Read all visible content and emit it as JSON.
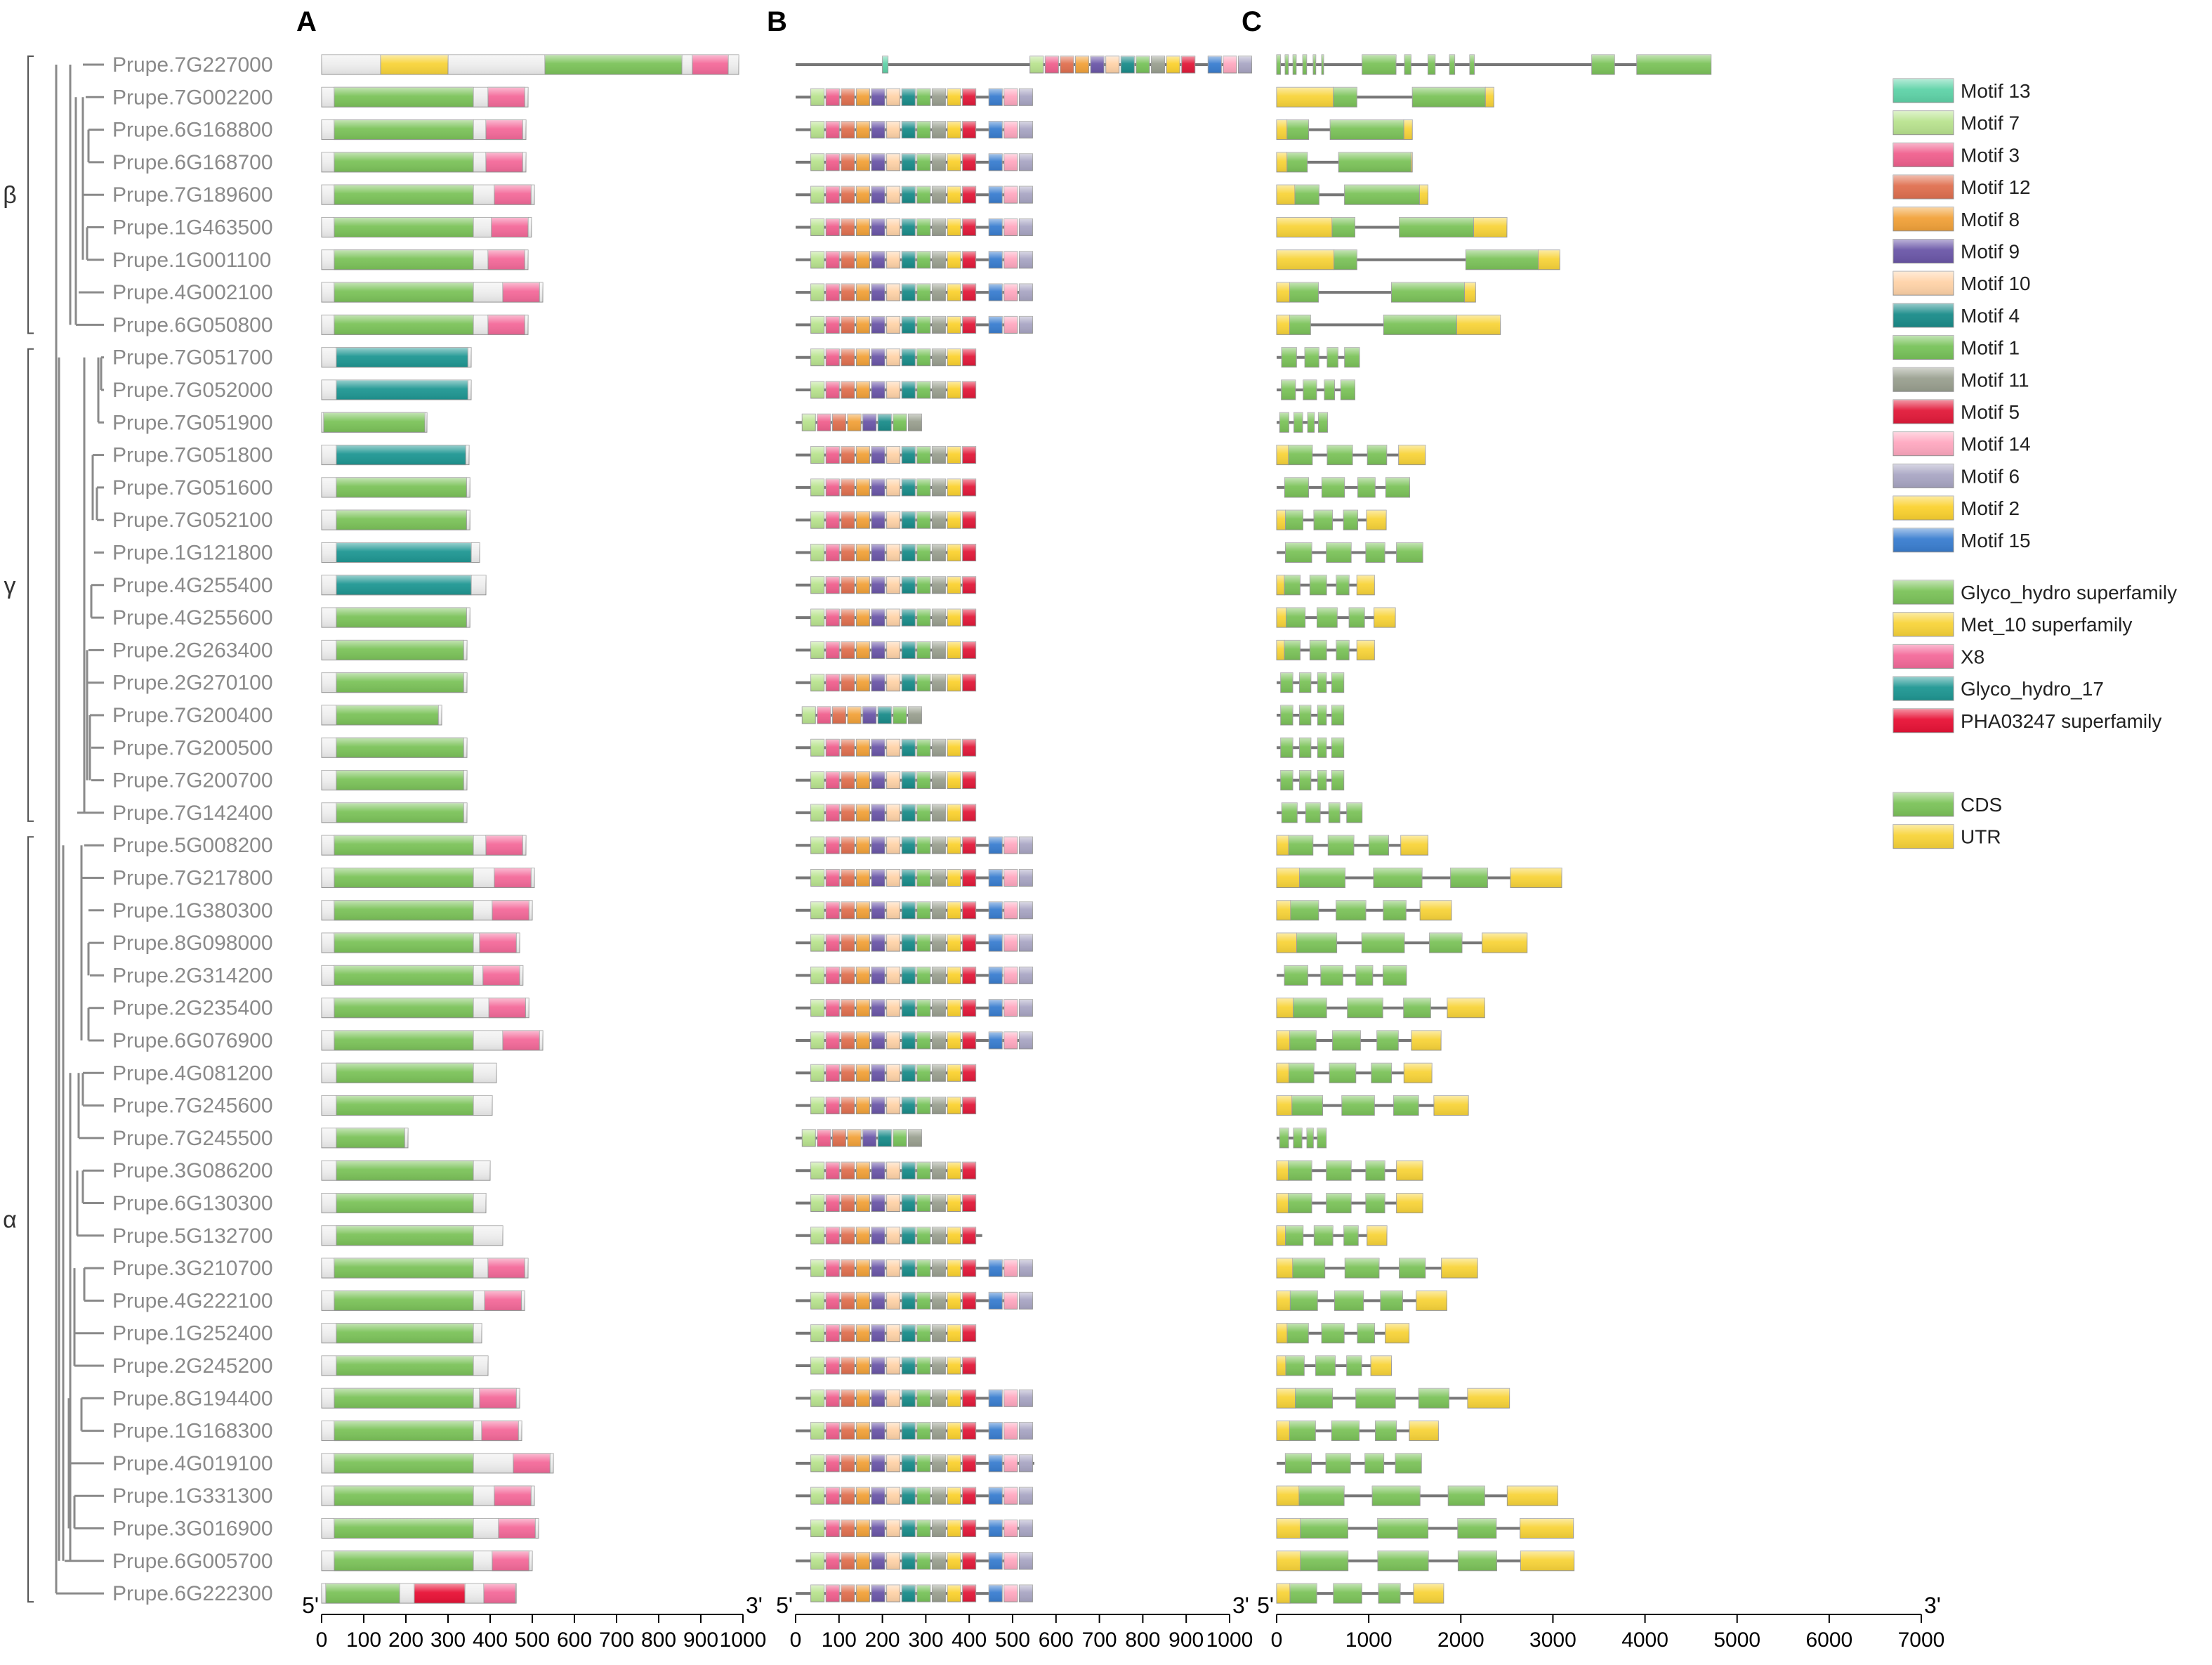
{
  "panels": [
    "A",
    "B",
    "C"
  ],
  "clades": [
    {
      "name": "β",
      "from": "Prupe.7G227000",
      "to": "Prupe.6G050800"
    },
    {
      "name": "γ",
      "from": "Prupe.7G051700",
      "to": "Prupe.7G142400"
    },
    {
      "name": "α",
      "from": "Prupe.5G008200",
      "to": "Prupe.6G222300"
    }
  ],
  "genes": [
    {
      "id": "Prupe.7G227000",
      "len": 990
    },
    {
      "id": "Prupe.7G002200",
      "len": 490
    },
    {
      "id": "Prupe.6G168800",
      "len": 485
    },
    {
      "id": "Prupe.6G168700",
      "len": 485
    },
    {
      "id": "Prupe.7G189600",
      "len": 505
    },
    {
      "id": "Prupe.1G463500",
      "len": 498
    },
    {
      "id": "Prupe.1G001100",
      "len": 490
    },
    {
      "id": "Prupe.4G002100",
      "len": 525
    },
    {
      "id": "Prupe.6G050800",
      "len": 490
    },
    {
      "id": "Prupe.7G051700",
      "len": 355
    },
    {
      "id": "Prupe.7G052000",
      "len": 355
    },
    {
      "id": "Prupe.7G051900",
      "len": 250
    },
    {
      "id": "Prupe.7G051800",
      "len": 350
    },
    {
      "id": "Prupe.7G051600",
      "len": 352
    },
    {
      "id": "Prupe.7G052100",
      "len": 352
    },
    {
      "id": "Prupe.1G121800",
      "len": 375
    },
    {
      "id": "Prupe.4G255400",
      "len": 390
    },
    {
      "id": "Prupe.4G255600",
      "len": 352
    },
    {
      "id": "Prupe.2G263400",
      "len": 345
    },
    {
      "id": "Prupe.2G270100",
      "len": 345
    },
    {
      "id": "Prupe.7G200400",
      "len": 285
    },
    {
      "id": "Prupe.7G200500",
      "len": 345
    },
    {
      "id": "Prupe.7G200700",
      "len": 345
    },
    {
      "id": "Prupe.7G142400",
      "len": 345
    },
    {
      "id": "Prupe.5G008200",
      "len": 485
    },
    {
      "id": "Prupe.7G217800",
      "len": 505
    },
    {
      "id": "Prupe.1G380300",
      "len": 500
    },
    {
      "id": "Prupe.8G098000",
      "len": 470
    },
    {
      "id": "Prupe.2G314200",
      "len": 478
    },
    {
      "id": "Prupe.2G235400",
      "len": 492
    },
    {
      "id": "Prupe.6G076900",
      "len": 525
    },
    {
      "id": "Prupe.4G081200",
      "len": 415
    },
    {
      "id": "Prupe.7G245600",
      "len": 405
    },
    {
      "id": "Prupe.7G245500",
      "len": 205
    },
    {
      "id": "Prupe.3G086200",
      "len": 400
    },
    {
      "id": "Prupe.6G130300",
      "len": 390
    },
    {
      "id": "Prupe.5G132700",
      "len": 430
    },
    {
      "id": "Prupe.3G210700",
      "len": 490
    },
    {
      "id": "Prupe.4G222100",
      "len": 482
    },
    {
      "id": "Prupe.1G252400",
      "len": 380
    },
    {
      "id": "Prupe.2G245200",
      "len": 395
    },
    {
      "id": "Prupe.8G194400",
      "len": 470
    },
    {
      "id": "Prupe.1G168300",
      "len": 475
    },
    {
      "id": "Prupe.4G019100",
      "len": 550
    },
    {
      "id": "Prupe.1G331300",
      "len": 505
    },
    {
      "id": "Prupe.3G016900",
      "len": 515
    },
    {
      "id": "Prupe.6G005700",
      "len": 500
    },
    {
      "id": "Prupe.6G222300",
      "len": 462
    }
  ],
  "motif_legend": [
    {
      "label": "Motif 13",
      "color": "#5fd3a8"
    },
    {
      "label": "Motif 7",
      "color": "#b9e38f"
    },
    {
      "label": "Motif 3",
      "color": "#f0608e"
    },
    {
      "label": "Motif 12",
      "color": "#e07050"
    },
    {
      "label": "Motif 8",
      "color": "#f2a23a"
    },
    {
      "label": "Motif 9",
      "color": "#6b57a8"
    },
    {
      "label": "Motif 10",
      "color": "#ffd3a8"
    },
    {
      "label": "Motif 4",
      "color": "#1a8c8a"
    },
    {
      "label": "Motif 1",
      "color": "#78c35a"
    },
    {
      "label": "Motif 11",
      "color": "#9aa090"
    },
    {
      "label": "Motif 5",
      "color": "#e21a3a"
    },
    {
      "label": "Motif 14",
      "color": "#ffa8c0"
    },
    {
      "label": "Motif 6",
      "color": "#a9a6c4"
    },
    {
      "label": "Motif 2",
      "color": "#fbd230"
    },
    {
      "label": "Motif 15",
      "color": "#3a7ed0"
    }
  ],
  "domain_legend": [
    {
      "label": "Glyco_hydro superfamily",
      "color": "#7cc35a"
    },
    {
      "label": "Met_10 superfamily",
      "color": "#f8d43a"
    },
    {
      "label": "X8",
      "color": "#f46a9a"
    },
    {
      "label": "Glyco_hydro_17",
      "color": "#1f9793"
    },
    {
      "label": "PHA03247 superfamily",
      "color": "#e81236"
    }
  ],
  "structure_legend": [
    {
      "label": "CDS",
      "color": "#7cc35a"
    },
    {
      "label": "UTR",
      "color": "#f8d43a"
    }
  ],
  "axis_A": {
    "ticks": [
      "0",
      "100",
      "200",
      "300",
      "400",
      "500",
      "600",
      "700",
      "800",
      "900",
      "1000"
    ],
    "left_end": "5'",
    "right_end": "3'"
  },
  "axis_B": {
    "ticks": [
      "0",
      "100",
      "200",
      "300",
      "400",
      "500",
      "600",
      "700",
      "800",
      "900",
      "1000"
    ],
    "left_end": "5'",
    "right_end": "3'"
  },
  "axis_C": {
    "ticks": [
      "0",
      "1000",
      "2000",
      "3000",
      "4000",
      "5000",
      "6000",
      "7000"
    ],
    "left_end": "5'",
    "right_end": "3'"
  }
}
